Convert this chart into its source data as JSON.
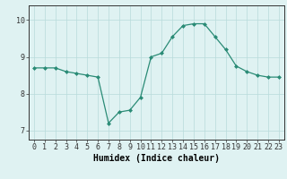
{
  "x": [
    0,
    1,
    2,
    3,
    4,
    5,
    6,
    7,
    8,
    9,
    10,
    11,
    12,
    13,
    14,
    15,
    16,
    17,
    18,
    19,
    20,
    21,
    22,
    23
  ],
  "y": [
    8.7,
    8.7,
    8.7,
    8.6,
    8.55,
    8.5,
    8.45,
    7.2,
    7.5,
    7.55,
    7.9,
    9.0,
    9.1,
    9.55,
    9.85,
    9.9,
    9.9,
    9.55,
    9.2,
    8.75,
    8.6,
    8.5,
    8.45,
    8.45
  ],
  "xlabel": "Humidex (Indice chaleur)",
  "ylabel": "",
  "xlim": [
    -0.5,
    23.5
  ],
  "ylim": [
    6.75,
    10.4
  ],
  "yticks": [
    7,
    8,
    9,
    10
  ],
  "xticks": [
    0,
    1,
    2,
    3,
    4,
    5,
    6,
    7,
    8,
    9,
    10,
    11,
    12,
    13,
    14,
    15,
    16,
    17,
    18,
    19,
    20,
    21,
    22,
    23
  ],
  "line_color": "#2a8b76",
  "marker_color": "#2a8b76",
  "bg_color": "#dff2f2",
  "grid_color": "#b8dada",
  "axis_color": "#333333",
  "label_fontsize": 7.0,
  "tick_fontsize": 6.0
}
